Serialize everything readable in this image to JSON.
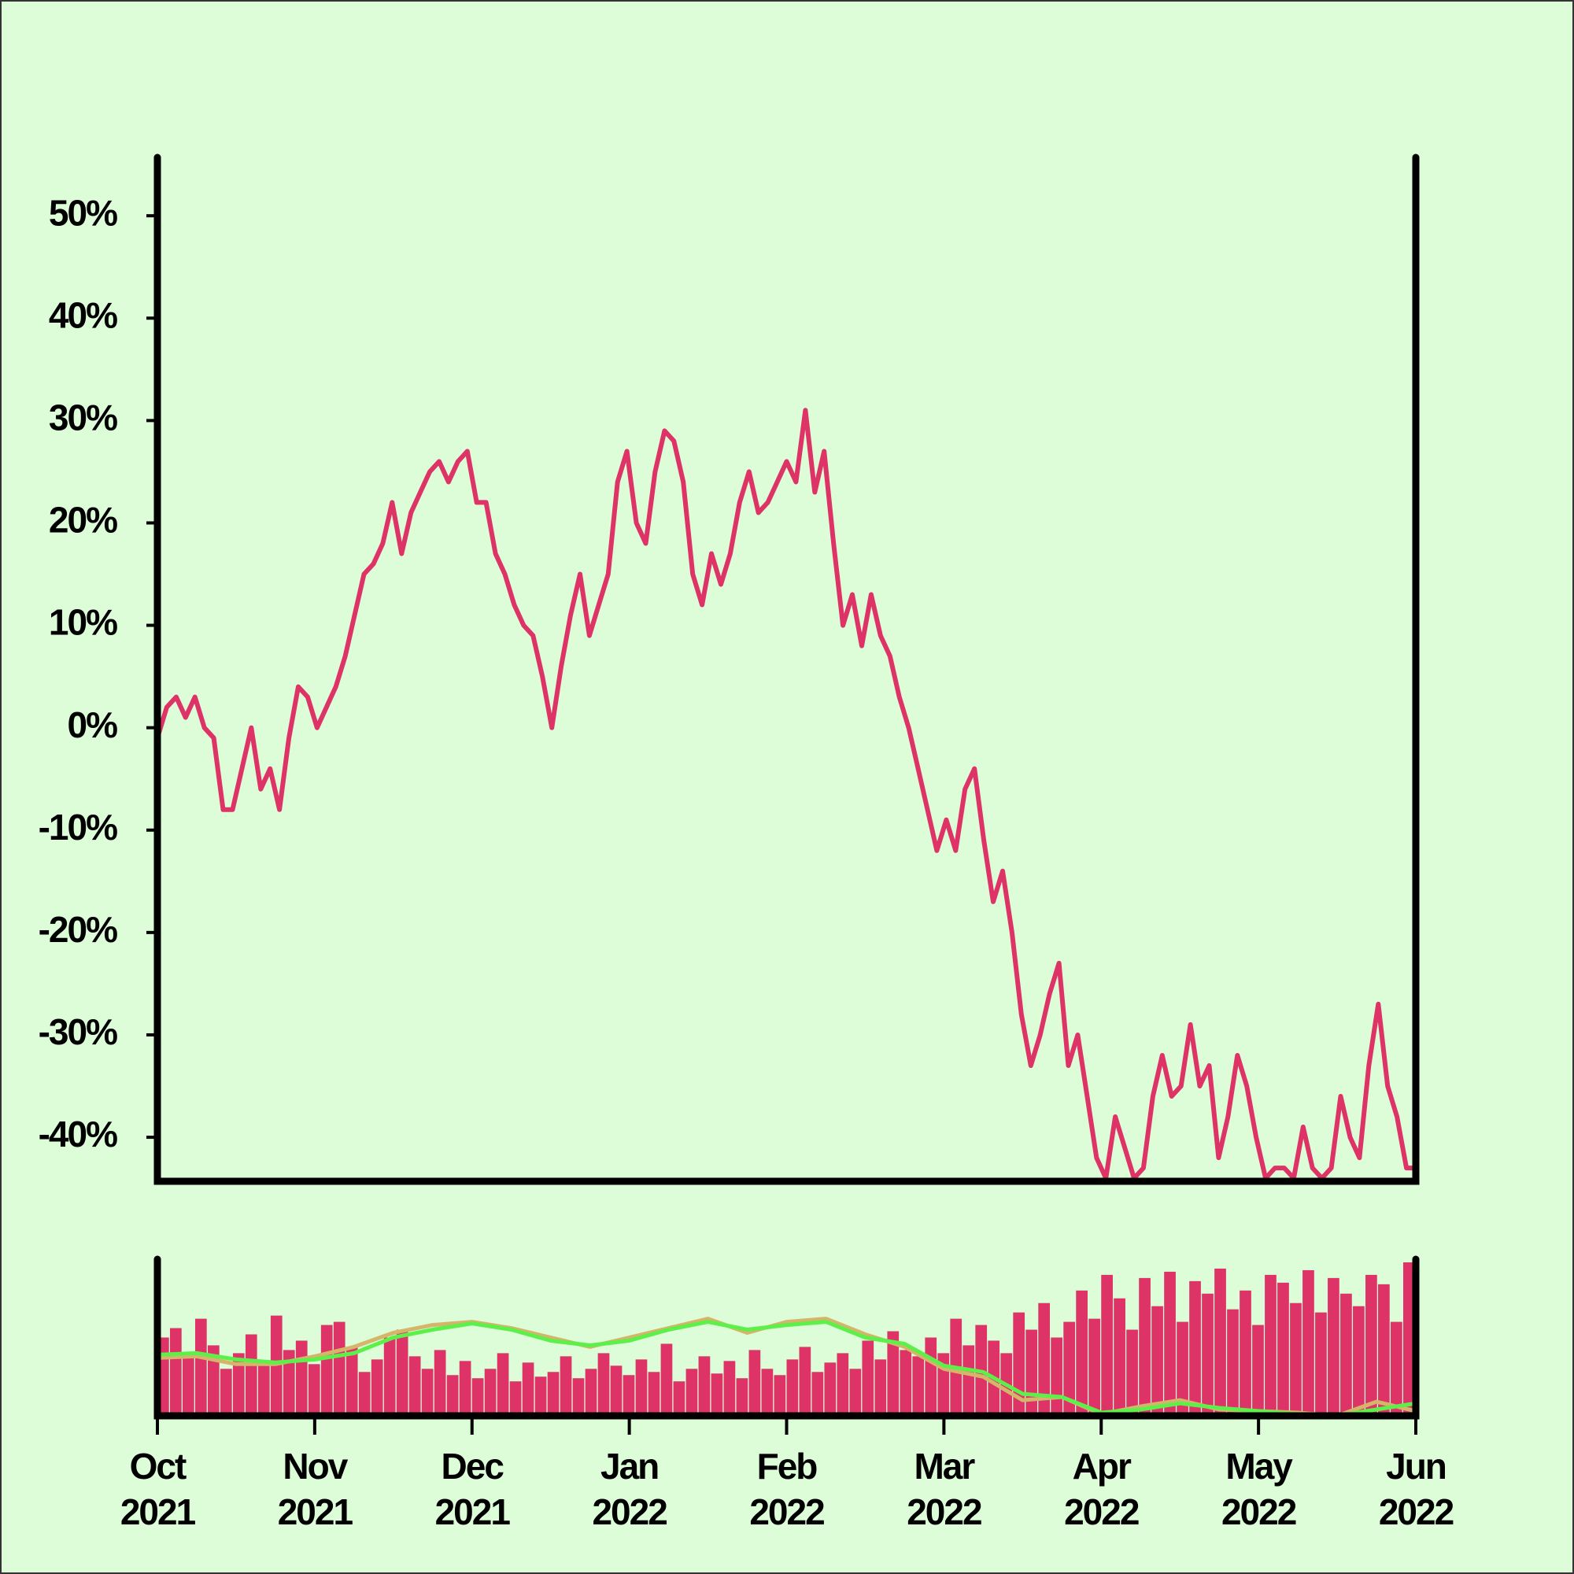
{
  "chart_data": [
    {
      "type": "line",
      "color": "#dd3366",
      "ylim": [
        -44.3,
        55.7
      ],
      "yticks": [
        {
          "value": 50,
          "label": "50%"
        },
        {
          "value": 40,
          "label": "40%"
        },
        {
          "value": 30,
          "label": "30%"
        },
        {
          "value": 20,
          "label": "20%"
        },
        {
          "value": 10,
          "label": "10%"
        },
        {
          "value": 0,
          "label": "0%"
        },
        {
          "value": -10,
          "label": "-10%"
        },
        {
          "value": -20,
          "label": "-20%"
        },
        {
          "value": -30,
          "label": "-30%"
        },
        {
          "value": -40,
          "label": "-40%"
        }
      ],
      "values": [
        -1,
        2,
        3,
        1,
        3,
        0,
        -1,
        -8,
        -8,
        -4,
        0,
        -6,
        -4,
        -8,
        -1,
        4,
        3,
        0,
        2,
        4,
        7,
        11,
        15,
        16,
        18,
        22,
        17,
        21,
        23,
        25,
        26,
        24,
        26,
        27,
        22,
        22,
        17,
        15,
        12,
        10,
        9,
        5,
        0,
        6,
        11,
        15,
        9,
        12,
        15,
        24,
        27,
        20,
        18,
        25,
        29,
        28,
        24,
        15,
        12,
        17,
        14,
        17,
        22,
        25,
        21,
        22,
        24,
        26,
        24,
        31,
        23,
        27,
        18,
        10,
        13,
        8,
        13,
        9,
        7,
        3,
        0,
        -4,
        -8,
        -12,
        -9,
        -12,
        -6,
        -4,
        -11,
        -17,
        -14,
        -20,
        -28,
        -33,
        -30,
        -26,
        -23,
        -33,
        -30,
        -36,
        -42,
        -44,
        -38,
        -41,
        -44,
        -43,
        -36,
        -32,
        -36,
        -35,
        -29,
        -35,
        -33,
        -42,
        -38,
        -32,
        -35,
        -40,
        -44,
        -43,
        -43,
        -44,
        -39,
        -43,
        -44,
        -43,
        -36,
        -40,
        -42,
        -33,
        -27,
        -35,
        -38,
        -43,
        -43
      ]
    },
    {
      "type": "bar",
      "color": "#dd3366",
      "ylim": [
        0,
        100
      ],
      "xlim": [
        0,
        8
      ],
      "xticks": [
        {
          "value": 0,
          "label": "Oct 2021"
        },
        {
          "value": 1,
          "label": "Nov 2021"
        },
        {
          "value": 2,
          "label": "Dec 2021"
        },
        {
          "value": 3,
          "label": "Jan 2022"
        },
        {
          "value": 4,
          "label": "Feb 2022"
        },
        {
          "value": 5,
          "label": "Mar 2022"
        },
        {
          "value": 6,
          "label": "Apr 2022"
        },
        {
          "value": 7,
          "label": "May 2022"
        },
        {
          "value": 8,
          "label": "Jun 2022"
        }
      ],
      "values": [
        50,
        56,
        38,
        62,
        45,
        30,
        40,
        52,
        35,
        64,
        42,
        48,
        33,
        58,
        60,
        44,
        28,
        36,
        50,
        55,
        38,
        30,
        42,
        26,
        35,
        24,
        30,
        40,
        22,
        34,
        25,
        28,
        38,
        24,
        30,
        40,
        32,
        26,
        36,
        28,
        46,
        22,
        30,
        38,
        27,
        35,
        24,
        42,
        30,
        26,
        36,
        44,
        28,
        34,
        40,
        30,
        48,
        36,
        54,
        42,
        38,
        50,
        40,
        62,
        45,
        58,
        48,
        40,
        66,
        55,
        72,
        50,
        60,
        80,
        62,
        90,
        75,
        55,
        88,
        70,
        92,
        60,
        86,
        78,
        94,
        68,
        80,
        58,
        90,
        85,
        72,
        93,
        66,
        88,
        78,
        70,
        90,
        84,
        60,
        98
      ],
      "series": [
        {
          "color": "#d4b56a",
          "values": [
            37,
            38,
            33,
            33,
            38,
            44,
            53,
            58,
            60,
            56,
            50,
            44,
            50,
            56,
            62,
            53,
            60,
            62,
            52,
            44,
            30,
            25,
            10,
            12,
            1,
            6,
            10,
            4,
            3,
            2,
            0,
            9,
            3
          ]
        },
        {
          "color": "#5ef04a",
          "values": [
            39,
            40,
            36,
            34,
            36,
            40,
            50,
            55,
            59,
            55,
            48,
            45,
            48,
            55,
            60,
            55,
            58,
            60,
            50,
            46,
            32,
            28,
            14,
            12,
            2,
            4,
            8,
            5,
            3,
            1,
            0,
            4,
            8
          ]
        }
      ]
    }
  ]
}
